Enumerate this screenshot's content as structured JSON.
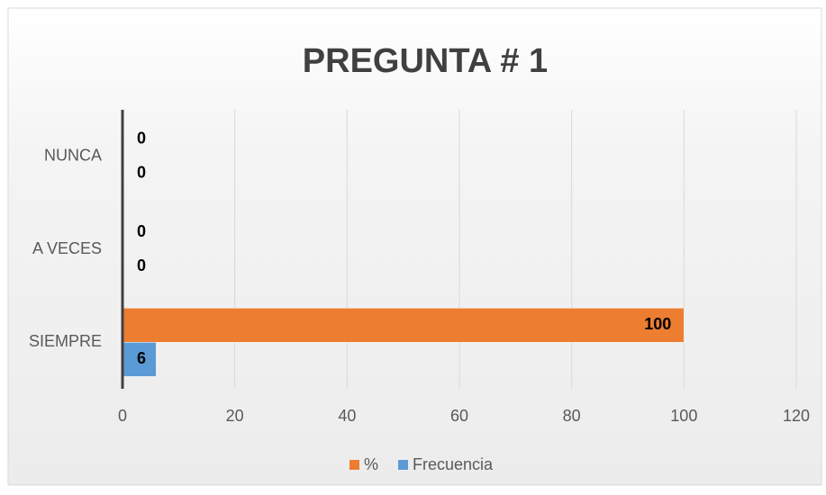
{
  "chart_data": {
    "type": "bar",
    "orientation": "horizontal",
    "title": "PREGUNTA # 1",
    "categories": [
      "SIEMPRE",
      "A VECES",
      "NUNCA"
    ],
    "series": [
      {
        "name": "%",
        "color": "#ed7d31",
        "values": [
          100,
          0,
          0
        ]
      },
      {
        "name": "Frecuencia",
        "color": "#5b9bd5",
        "values": [
          6,
          0,
          0
        ]
      }
    ],
    "xlim": [
      0,
      120
    ],
    "xticks": [
      0,
      20,
      40,
      60,
      80,
      100,
      120
    ],
    "grid": true,
    "legend": "bottom"
  }
}
